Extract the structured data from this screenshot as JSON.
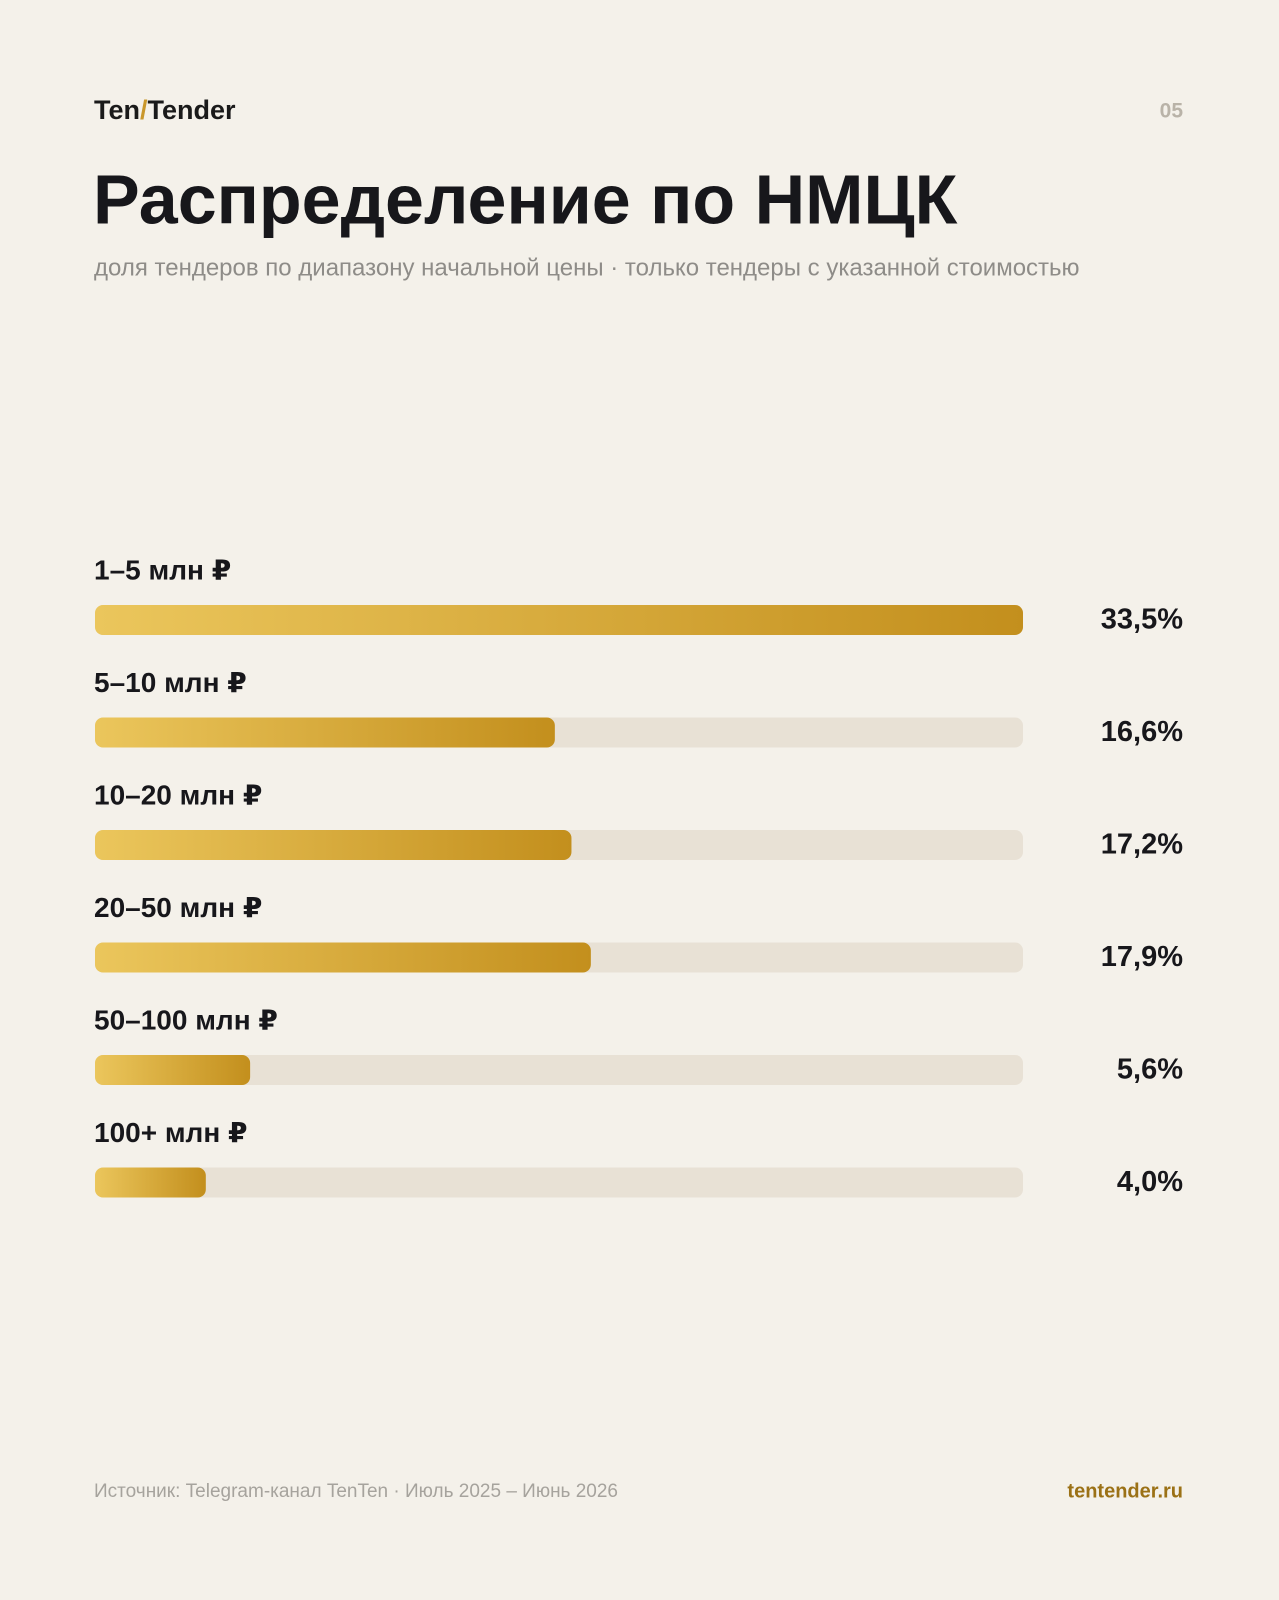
{
  "header": {
    "brand_left": "Ten",
    "brand_sep": "/",
    "brand_right": "Tender",
    "page": "05"
  },
  "chart_data": {
    "type": "bar",
    "orientation": "horizontal",
    "title": "Распределение по НМЦК",
    "subtitle": "доля тендеров по диапазону начальной цены · только тендеры с указанной стоимостью",
    "categories": [
      "1–5 млн ₽",
      "5–10 млн ₽",
      "10–20 млн ₽",
      "20–50 млн ₽",
      "50–100 млн ₽",
      "100+ млн ₽"
    ],
    "values": [
      33.5,
      16.6,
      17.2,
      17.9,
      5.6,
      4.0
    ],
    "value_labels": [
      "33,5%",
      "16,6%",
      "17,2%",
      "17,9%",
      "5,6%",
      "4,0%"
    ],
    "color_start": "#ebc65c",
    "color_end": "#c38f1d",
    "track_color": "#e8e1d5"
  },
  "footer": {
    "source": "Источник: Telegram-канал TenTen · Июль 2025 – Июнь 2026",
    "site": "tentender.ru"
  }
}
